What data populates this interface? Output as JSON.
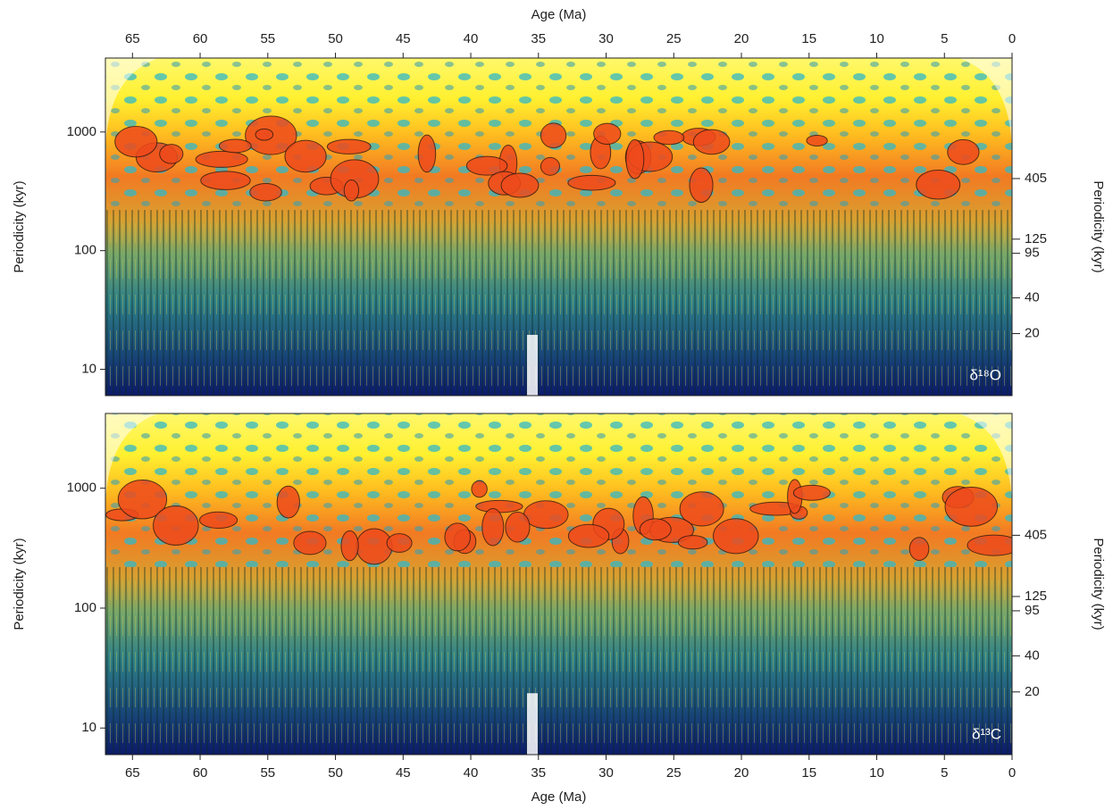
{
  "chart_data": [
    {
      "type": "spectrogram",
      "xlabel": "Age (Ma)",
      "xlabel_side": "top",
      "ylabel": "Periodicity (kyr)",
      "y2label": "Periodicity (kyr)",
      "label": "δ¹⁸O",
      "xlim": [
        67,
        0
      ],
      "xticks": [
        65,
        60,
        55,
        50,
        45,
        40,
        35,
        30,
        25,
        20,
        15,
        10,
        5,
        0
      ],
      "ylim": [
        6,
        4200
      ],
      "yscale": "log",
      "yticks": [
        10,
        100,
        1000
      ],
      "y2ticks": [
        405,
        125,
        95,
        40,
        20
      ]
    },
    {
      "type": "spectrogram",
      "xlabel": "Age (Ma)",
      "xlabel_side": "bottom",
      "ylabel": "Periodicity (kyr)",
      "y2label": "Periodicity (kyr)",
      "label": "δ¹³C",
      "xlim": [
        67,
        0
      ],
      "xticks": [
        65,
        60,
        55,
        50,
        45,
        40,
        35,
        30,
        25,
        20,
        15,
        10,
        5,
        0
      ],
      "ylim": [
        6,
        4200
      ],
      "yscale": "log",
      "yticks": [
        10,
        100,
        1000
      ],
      "y2ticks": [
        405,
        125,
        95,
        40,
        20
      ]
    }
  ]
}
